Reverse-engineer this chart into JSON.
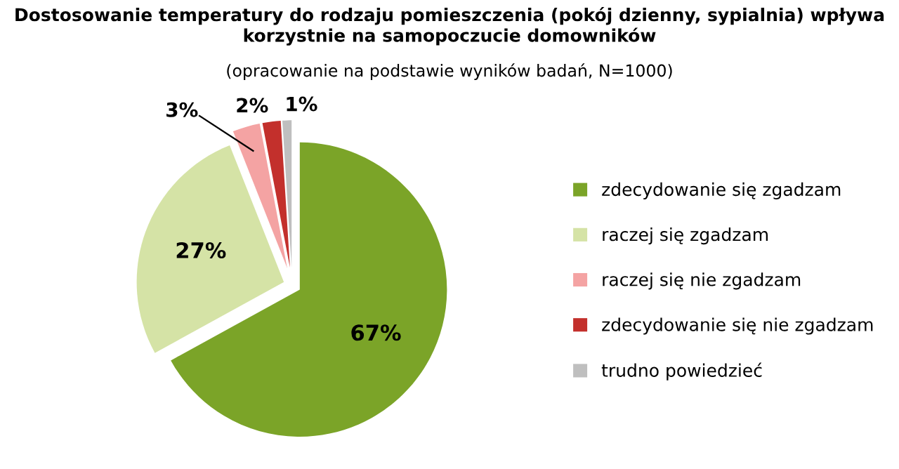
{
  "chart_data": {
    "type": "pie",
    "title": "Dostosowanie temperatury do rodzaju pomieszczenia (pokój dzienny, sypialnia) wpływa korzystnie na samopoczucie domowników",
    "subtitle": "(opracowanie na podstawie wyników badań, N=1000)",
    "categories": [
      "zdecydowanie się zgadzam",
      "raczej się zgadzam",
      "raczej się nie zgadzam",
      "zdecydowanie się nie zgadzam",
      "trudno powiedzieć"
    ],
    "values": [
      67,
      27,
      3,
      2,
      1
    ],
    "colors": [
      "#7ba428",
      "#d5e3a6",
      "#f4a3a3",
      "#c3302c",
      "#bfbfbf"
    ],
    "value_labels": [
      "67%",
      "27%",
      "3%",
      "2%",
      "1%"
    ],
    "legend": "right"
  }
}
